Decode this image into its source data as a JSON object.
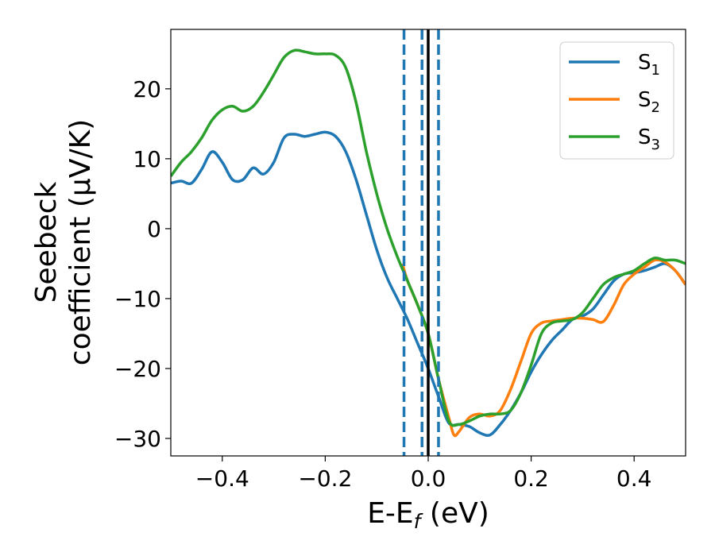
{
  "chart_data": {
    "type": "line",
    "title": "",
    "xlabel": {
      "main": "E-E",
      "sub": "f",
      "tail": " (eV)"
    },
    "ylabel": {
      "line1": "Seebeck",
      "line2": "coefficient  (μV/K)"
    },
    "xlim": [
      -0.5,
      0.5
    ],
    "ylim": [
      -32.5,
      28.5
    ],
    "xticks": [
      -0.4,
      -0.2,
      0.0,
      0.2,
      0.4
    ],
    "xtick_labels": [
      "−0.4",
      "−0.2",
      "0.0",
      "0.2",
      "0.4"
    ],
    "yticks": [
      -30,
      -20,
      -10,
      0,
      10,
      20
    ],
    "ytick_labels": [
      "−30",
      "−20",
      "−10",
      "0",
      "10",
      "20"
    ],
    "grid": false,
    "legend_position": "top-right",
    "vlines": [
      {
        "x": -0.047,
        "style": "dashed",
        "color": "#1f77b4"
      },
      {
        "x": -0.012,
        "style": "dashed",
        "color": "#1f77b4"
      },
      {
        "x": 0.02,
        "style": "dashed",
        "color": "#1f77b4"
      },
      {
        "x": 0.0,
        "style": "solid",
        "color": "#000000"
      }
    ],
    "series": [
      {
        "name": "S",
        "sub": "1",
        "color": "#1f77b4",
        "x": [
          -0.5,
          -0.48,
          -0.46,
          -0.44,
          -0.42,
          -0.4,
          -0.38,
          -0.36,
          -0.34,
          -0.32,
          -0.3,
          -0.28,
          -0.26,
          -0.24,
          -0.22,
          -0.2,
          -0.18,
          -0.16,
          -0.14,
          -0.12,
          -0.1,
          -0.08,
          -0.06,
          -0.04,
          -0.02,
          0.0,
          0.02,
          0.04,
          0.06,
          0.08,
          0.1,
          0.12,
          0.14,
          0.16,
          0.18,
          0.2,
          0.22,
          0.24,
          0.26,
          0.28,
          0.3,
          0.32,
          0.34,
          0.36,
          0.38,
          0.4,
          0.42,
          0.44,
          0.46,
          0.48,
          0.5
        ],
        "values": [
          6.5,
          6.8,
          6.5,
          8.5,
          11.0,
          9.5,
          7.0,
          7.0,
          8.7,
          7.8,
          9.5,
          13.0,
          13.5,
          13.2,
          13.5,
          13.8,
          13.2,
          11.0,
          7.0,
          2.0,
          -3.0,
          -7.0,
          -10.0,
          -13.0,
          -16.5,
          -20.0,
          -24.0,
          -27.8,
          -28.0,
          -28.3,
          -29.2,
          -29.5,
          -28.0,
          -26.0,
          -23.5,
          -20.5,
          -18.0,
          -16.0,
          -14.5,
          -13.0,
          -12.5,
          -11.5,
          -9.5,
          -7.5,
          -6.5,
          -6.3,
          -6.0,
          -5.5,
          -5.0,
          -6.0,
          -8.0
        ]
      },
      {
        "name": "S",
        "sub": "2",
        "color": "#ff7f0e",
        "x": [
          -0.05,
          -0.04,
          -0.02,
          0.0,
          0.02,
          0.04,
          0.05,
          0.06,
          0.08,
          0.1,
          0.12,
          0.14,
          0.16,
          0.18,
          0.2,
          0.22,
          0.24,
          0.26,
          0.28,
          0.3,
          0.32,
          0.34,
          0.36,
          0.38,
          0.4,
          0.42,
          0.44,
          0.46,
          0.48,
          0.5
        ],
        "values": [
          -5.0,
          -7.5,
          -11.0,
          -15.0,
          -21.5,
          -27.0,
          -29.5,
          -29.0,
          -27.0,
          -26.5,
          -26.8,
          -26.0,
          -23.0,
          -19.0,
          -15.0,
          -13.5,
          -13.2,
          -13.0,
          -12.8,
          -12.8,
          -13.0,
          -13.3,
          -11.0,
          -8.0,
          -6.5,
          -5.5,
          -4.5,
          -4.8,
          -6.0,
          -8.0
        ]
      },
      {
        "name": "S",
        "sub": "3",
        "color": "#2ca02c",
        "x": [
          -0.5,
          -0.48,
          -0.46,
          -0.44,
          -0.42,
          -0.4,
          -0.38,
          -0.36,
          -0.34,
          -0.32,
          -0.3,
          -0.28,
          -0.26,
          -0.24,
          -0.22,
          -0.2,
          -0.18,
          -0.16,
          -0.14,
          -0.12,
          -0.1,
          -0.08,
          -0.06,
          -0.04,
          -0.02,
          0.0,
          0.02,
          0.04,
          0.06,
          0.08,
          0.1,
          0.12,
          0.14,
          0.16,
          0.18,
          0.2,
          0.22,
          0.24,
          0.26,
          0.28,
          0.3,
          0.32,
          0.34,
          0.36,
          0.38,
          0.4,
          0.42,
          0.44,
          0.46,
          0.48,
          0.5
        ],
        "values": [
          7.5,
          9.5,
          11.0,
          13.0,
          15.5,
          17.0,
          17.5,
          16.8,
          17.5,
          19.5,
          22.0,
          24.5,
          25.5,
          25.3,
          25.0,
          25.0,
          24.8,
          23.0,
          18.0,
          11.0,
          5.0,
          0.0,
          -4.0,
          -7.5,
          -11.0,
          -15.0,
          -21.5,
          -27.5,
          -28.0,
          -27.5,
          -26.8,
          -26.5,
          -26.5,
          -26.0,
          -23.5,
          -19.5,
          -15.0,
          -13.5,
          -13.2,
          -13.0,
          -12.0,
          -10.0,
          -8.0,
          -7.0,
          -6.5,
          -6.0,
          -5.0,
          -4.2,
          -4.5,
          -4.5,
          -5.0
        ]
      }
    ]
  }
}
